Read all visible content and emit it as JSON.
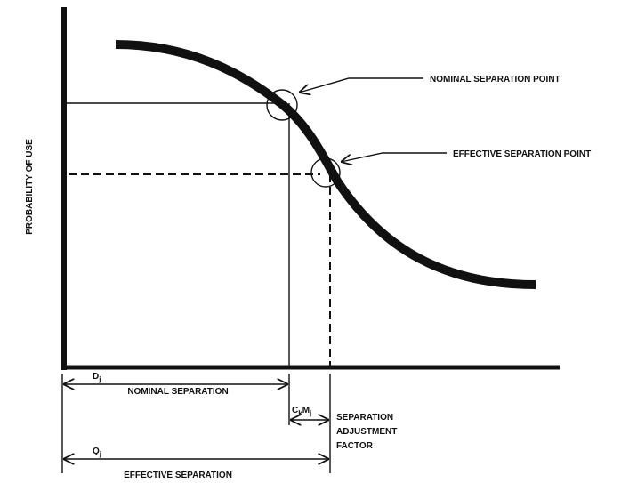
{
  "y_axis_label": "PROBABILITY OF USE",
  "nominal_point_label": "NOMINAL SEPARATION POINT",
  "effective_point_label": "EFFECTIVE SEPARATION POINT",
  "nominal_symbol": {
    "base": "D",
    "sub": "j"
  },
  "nominal_label": "NOMINAL SEPARATION",
  "adjustment_symbol": [
    {
      "base": "C",
      "sub": "k"
    },
    {
      "base": "M",
      "sub": "j"
    }
  ],
  "adjustment_label": [
    "SEPARATION",
    "ADJUSTMENT",
    "FACTOR"
  ],
  "effective_symbol": {
    "base": "Q",
    "sub": "j"
  },
  "effective_label": "EFFECTIVE SEPARATION"
}
